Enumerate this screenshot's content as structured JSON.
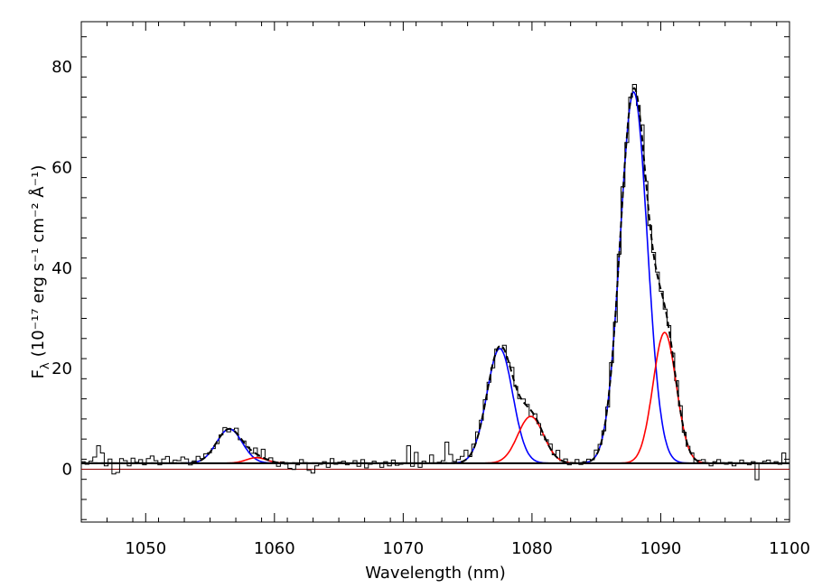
{
  "chart_data": {
    "type": "line",
    "title": "",
    "xlabel": "Wavelength (nm)",
    "ylabel": "F",
    "ylabel_subscript": "λ",
    "ylabel_units": "(10⁻¹⁷ erg s⁻¹ cm⁻² Å⁻¹)",
    "xlim": [
      1045,
      1100
    ],
    "ylim": [
      -10.5,
      89
    ],
    "xticks": [
      1050,
      1060,
      1070,
      1080,
      1090,
      1100
    ],
    "xtick_labels": [
      "1050",
      "1060",
      "1070",
      "1080",
      "1090",
      "1100"
    ],
    "yticks": [
      0,
      20,
      40,
      60,
      80
    ],
    "ytick_labels": [
      "0",
      "20",
      "40",
      "60",
      "80"
    ],
    "grid": false,
    "legend": "none",
    "continuum": 1.2,
    "colors": {
      "data": "#000000",
      "blue": "#0000ff",
      "red": "#ff0000",
      "total": "#000000",
      "zero": "#8b0000"
    },
    "components": [
      {
        "color": "blue",
        "center": 1056.5,
        "amplitude": 6.8,
        "sigma": 1.0
      },
      {
        "color": "red",
        "center": 1058.6,
        "amplitude": 1.1,
        "sigma": 0.8
      },
      {
        "color": "blue",
        "center": 1077.5,
        "amplitude": 22.8,
        "sigma": 1.0
      },
      {
        "color": "red",
        "center": 1079.9,
        "amplitude": 9.3,
        "sigma": 1.0
      },
      {
        "color": "blue",
        "center": 1087.9,
        "amplitude": 73.8,
        "sigma": 1.05
      },
      {
        "color": "red",
        "center": 1090.3,
        "amplitude": 26.0,
        "sigma": 0.9
      }
    ],
    "observed_step_noise": [
      0.3,
      -0.2,
      0.4,
      1.2,
      3.4,
      2.0,
      -0.5,
      0.8,
      -2.1,
      -1.8,
      0.9,
      0.5,
      -0.5,
      1.0,
      0.2,
      0.7,
      -0.3,
      0.9,
      1.4,
      0.5,
      -0.3,
      0.8,
      1.3,
      0.1,
      0.6,
      0.5,
      1.2,
      0.8,
      -0.4,
      0.3,
      1.0,
      0.2,
      0.6,
      0.0,
      -0.2,
      -0.4,
      0.1,
      0.6,
      -0.5,
      0.0,
      0.8,
      -0.4,
      0.3,
      0.0,
      -0.5,
      1.0,
      -0.3,
      1.6,
      0.1,
      0.6,
      0.0,
      -0.7,
      0.2,
      -0.2,
      -1.0,
      -1.2,
      -0.3,
      0.7,
      0.1,
      -1.4,
      -1.9,
      -0.5,
      -0.2,
      0.3,
      -0.8,
      0.9,
      -0.2,
      0.2,
      0.4,
      -0.3,
      -0.1,
      0.5,
      -0.6,
      0.7,
      -0.9,
      -0.2,
      0.4,
      0.0,
      -0.8,
      0.3,
      -0.5,
      0.6,
      -0.4,
      -0.2,
      0.0,
      3.4,
      -0.6,
      2.1,
      -0.8,
      0.4,
      0.0,
      1.6,
      0.0,
      0.2,
      0.5,
      4.1,
      1.7,
      0.3,
      0.6,
      1.0,
      1.8,
      -0.2,
      0.8,
      1.0,
      0.3,
      0.5,
      0.0,
      -0.6,
      0.2,
      -0.4,
      0.6,
      -0.3,
      0.9,
      0.0,
      -0.4,
      0.5,
      0.3,
      -1.0,
      0.4,
      0.0,
      -0.5,
      0.2,
      0.8,
      -0.1,
      1.5,
      0.0,
      0.6,
      -0.4,
      0.0,
      0.7,
      -0.3,
      0.2,
      0.5,
      0.0,
      1.0,
      0.4,
      0.0,
      -0.3,
      0.6,
      -0.8,
      0.1,
      0.5,
      -0.5,
      0.2,
      0.3,
      -0.2,
      1.1,
      0.0,
      -0.3,
      0.2,
      0.4,
      0.0,
      -0.2,
      0.4,
      0.3,
      0.5,
      0.8,
      -0.1,
      0.0,
      0.4,
      -0.6,
      0.3,
      0.6,
      0.0,
      -0.5,
      0.3,
      0.7,
      0.1,
      -0.2,
      0.2,
      -0.5,
      0.0,
      0.6,
      0.0,
      -0.3,
      0.3,
      -3.2,
      -0.1,
      0.4,
      0.6,
      -0.1,
      0.3,
      -0.2,
      2.0,
      0.0
    ]
  }
}
